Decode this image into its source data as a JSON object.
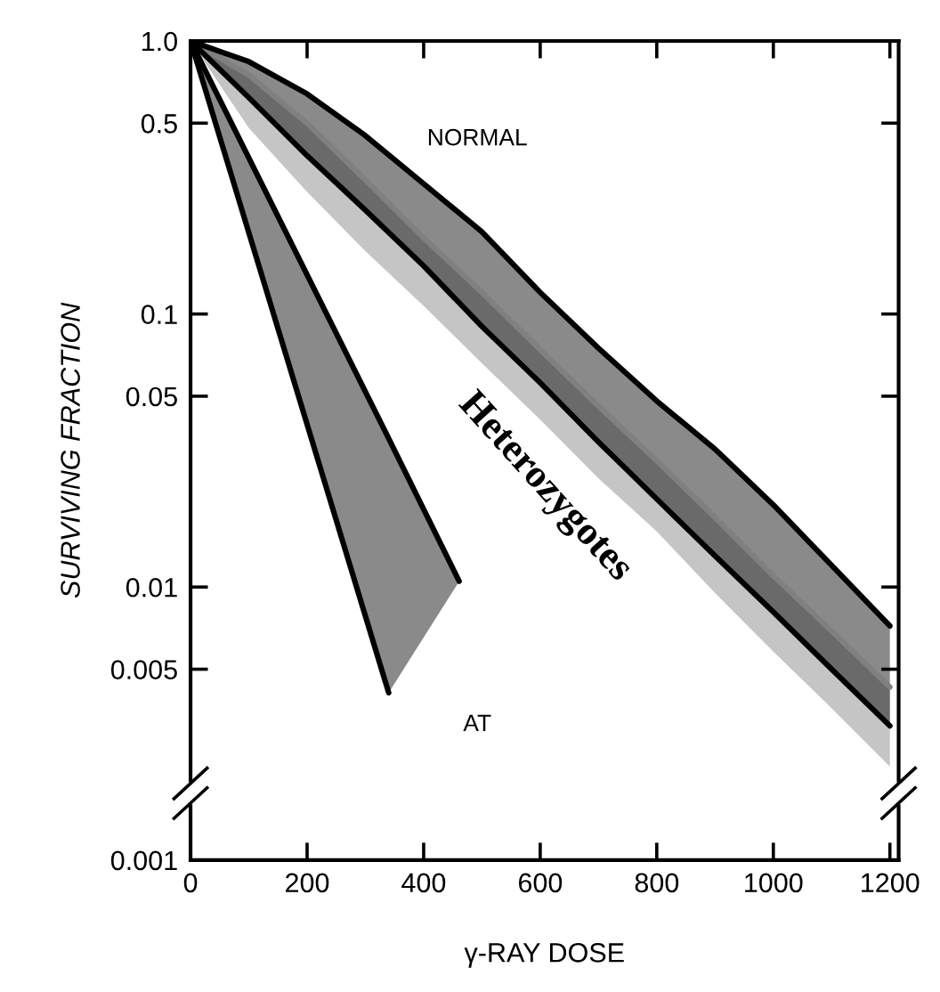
{
  "chart_data": {
    "type": "line",
    "xlabel": "γ-RAY DOSE",
    "ylabel": "SURVIVING FRACTION",
    "x": [
      0,
      100,
      200,
      300,
      400,
      500,
      600,
      700,
      800,
      900,
      1000,
      1100,
      1200
    ],
    "series": [
      {
        "color": "#808080",
        "values": [
          1,
          0.75,
          0.5,
          0.31,
          0.19,
          0.12,
          0.074,
          0.046,
          0.029,
          0.018,
          0.011,
          0.0069,
          0.0043
        ],
        "upper": [
          1,
          0.75,
          0.5,
          0.31,
          0.19,
          0.12,
          0.074,
          0.046,
          0.029,
          0.018,
          0.011,
          0.0069,
          0.0043
        ],
        "lower": [
          1,
          0.48,
          0.28,
          0.17,
          0.107,
          0.066,
          0.041,
          0.025,
          0.016,
          0.0095,
          0.0058,
          0.0036,
          0.0022
        ]
      },
      {
        "color": "#000000",
        "values": [
          1,
          0.84,
          0.64,
          0.45,
          0.3,
          0.2,
          0.12,
          0.075,
          0.048,
          0.032,
          0.02,
          0.012,
          0.0072
        ],
        "upper": [
          1,
          0.84,
          0.64,
          0.45,
          0.3,
          0.2,
          0.12,
          0.075,
          0.048,
          0.032,
          0.02,
          0.012,
          0.0072
        ],
        "lower": [
          1,
          0.62,
          0.38,
          0.24,
          0.15,
          0.09,
          0.056,
          0.034,
          0.021,
          0.013,
          0.0081,
          0.005,
          0.0031
        ]
      },
      {
        "color": "#000000",
        "values": [
          1,
          0.62,
          0.38,
          0.24,
          0.15,
          0.09,
          0.056,
          0.034,
          0.021,
          0.013,
          0.0081,
          0.005,
          0.0031
        ]
      },
      {
        "color": "#000000",
        "x": [
          0,
          340,
          461
        ],
        "values": [
          1,
          0.035,
          0.0105
        ],
        "upper": [
          1,
          0.035,
          0.0105
        ],
        "lower": [
          1,
          0.0041,
          0.0105
        ]
      },
      {
        "color": "#000000",
        "x": [
          0,
          340
        ],
        "values": [
          1,
          0.0041
        ]
      }
    ],
    "annotations": [
      "NORMAL",
      "AT",
      "Heterozygotes"
    ],
    "log": "y",
    "xlim": [
      0,
      1215
    ],
    "xticks": [
      0,
      200,
      400,
      600,
      800,
      1000,
      1200
    ],
    "ylim": [
      0.001,
      1
    ],
    "yticks": [
      {
        "value": 1,
        "label": "1.0"
      },
      0.5,
      0.1,
      0.05,
      0.01,
      0.005,
      0.001
    ],
    "grid": false
  }
}
